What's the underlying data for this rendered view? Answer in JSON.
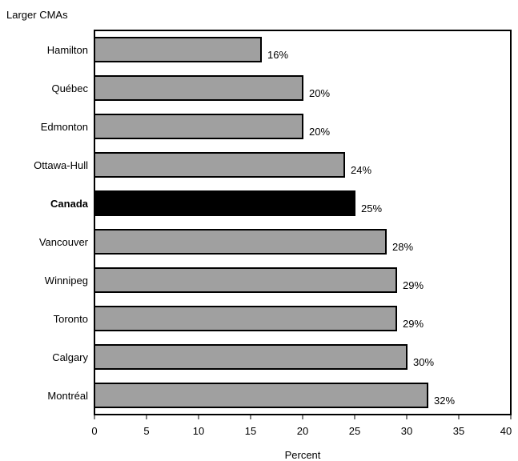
{
  "chart_data": {
    "type": "bar",
    "orientation": "horizontal",
    "title": "Larger CMAs",
    "xlabel": "Percent",
    "ylabel": "",
    "xlim": [
      0,
      40
    ],
    "x_ticks": [
      0,
      5,
      10,
      15,
      20,
      25,
      30,
      35,
      40
    ],
    "categories": [
      "Hamilton",
      "Québec",
      "Edmonton",
      "Ottawa-Hull",
      "Canada",
      "Vancouver",
      "Winnipeg",
      "Toronto",
      "Calgary",
      "Montréal"
    ],
    "values": [
      16,
      20,
      20,
      24,
      25,
      28,
      29,
      29,
      30,
      32
    ],
    "value_labels": [
      "16%",
      "20%",
      "20%",
      "24%",
      "25%",
      "28%",
      "29%",
      "29%",
      "30%",
      "32%"
    ],
    "highlight_category": "Canada",
    "colors": {
      "bar": "#a0a0a0",
      "highlight": "#000000",
      "border": "#000000"
    },
    "grid": false,
    "legend": "none"
  }
}
